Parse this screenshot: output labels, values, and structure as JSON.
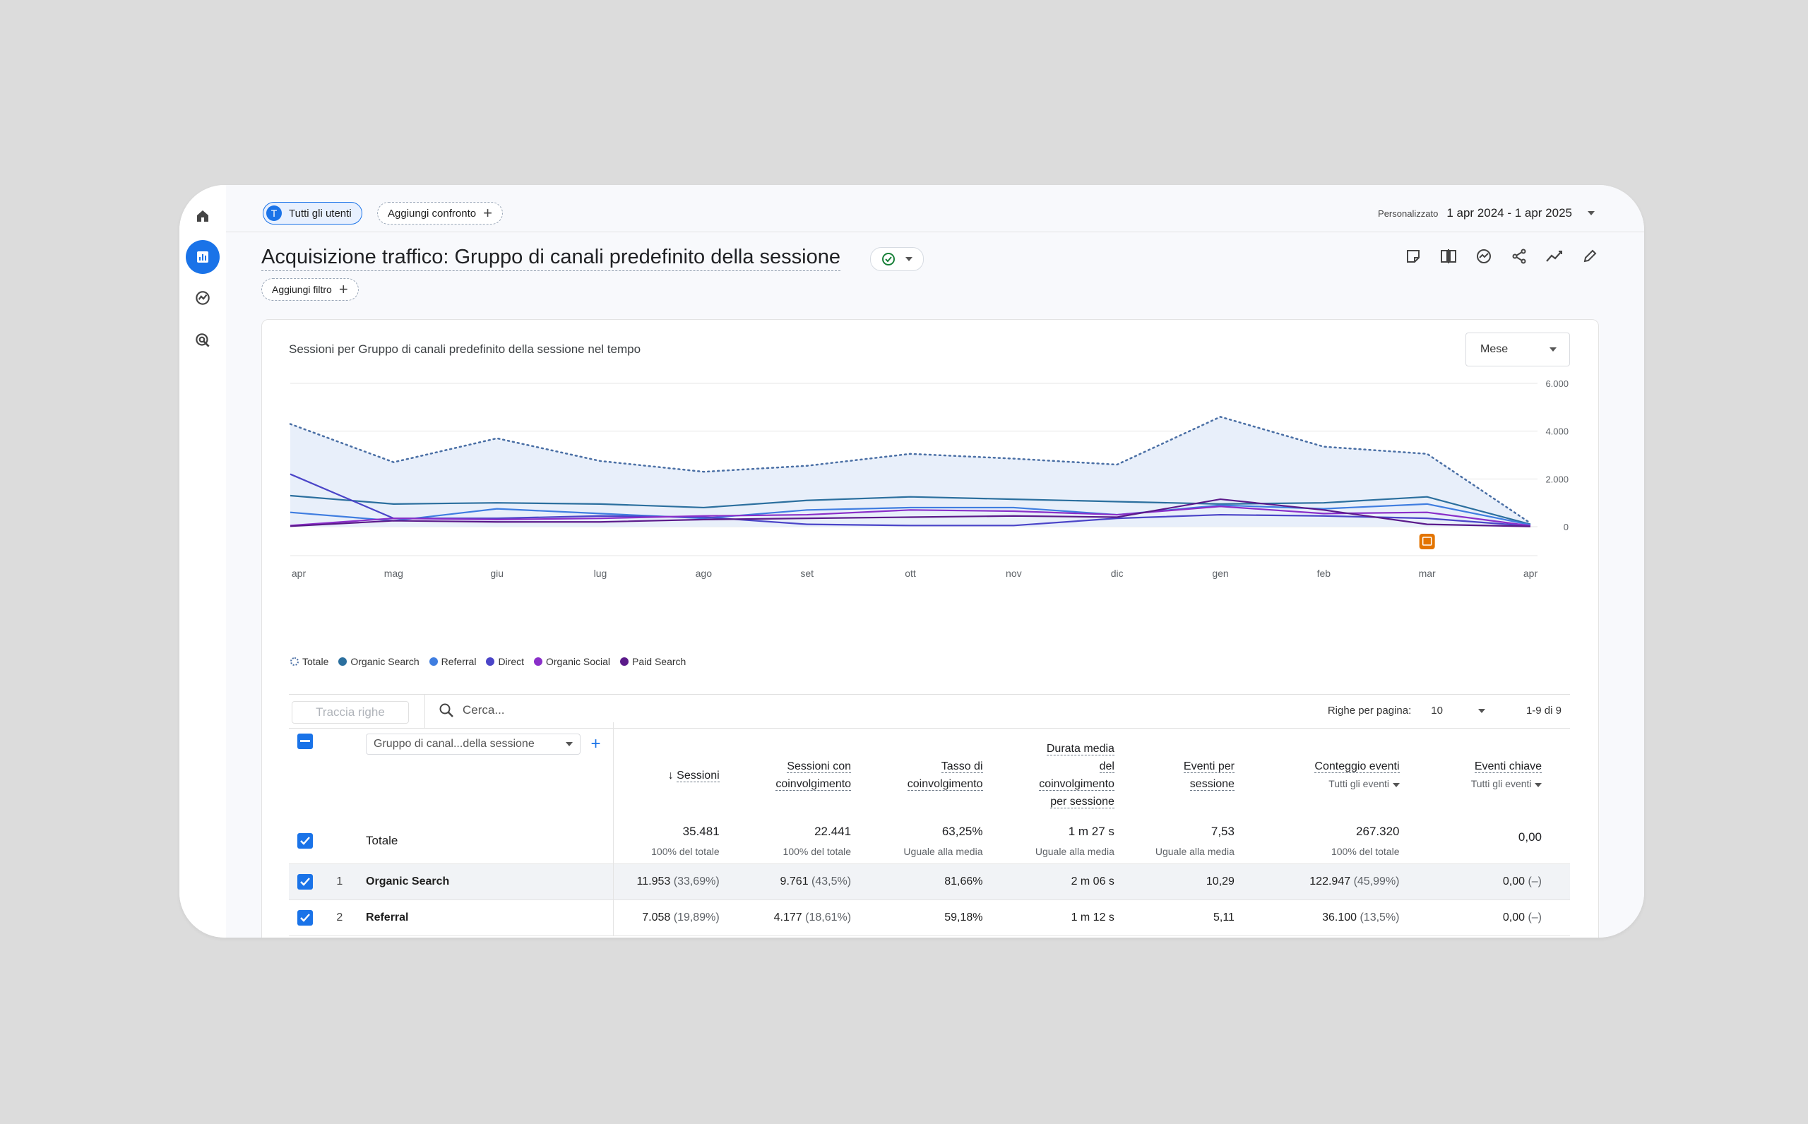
{
  "filters": {
    "audience_label": "Tutti gli utenti",
    "audience_initial": "T",
    "compare_label": "Aggiungi confronto",
    "add_filter_label": "Aggiungi filtro"
  },
  "date": {
    "preset": "Personalizzato",
    "range": "1 apr 2024 - 1 apr 2025"
  },
  "page_title": "Acquisizione traffico: Gruppo di canali predefinito della sessione",
  "toolbar_icons": [
    "notes-icon",
    "compare-icon",
    "insights-icon",
    "share-icon",
    "trend-icon",
    "edit-icon"
  ],
  "rail_icons": [
    "home-icon",
    "reports-icon",
    "explore-icon",
    "advertising-icon"
  ],
  "chart": {
    "title": "Sessioni per Gruppo di canali predefinito della sessione nel tempo",
    "period": "Mese"
  },
  "chart_data": {
    "type": "line",
    "x": [
      "apr",
      "mag",
      "giu",
      "lug",
      "ago",
      "set",
      "ott",
      "nov",
      "dic",
      "gen",
      "feb",
      "mar",
      "apr"
    ],
    "y_ticks": [
      "6.000",
      "4.000",
      "2.000",
      "0"
    ],
    "ylim": [
      0,
      6000
    ],
    "grid": true,
    "legend_position": "bottom-left",
    "series": [
      {
        "name": "Totale",
        "color": "#4a6fa5",
        "style": "dotted-area",
        "values": [
          4300,
          2700,
          3700,
          2750,
          2300,
          2550,
          3050,
          2850,
          2600,
          4600,
          3350,
          3050,
          150
        ]
      },
      {
        "name": "Organic Search",
        "color": "#2b6f9e",
        "values": [
          1300,
          950,
          1000,
          950,
          800,
          1100,
          1250,
          1150,
          1050,
          950,
          1000,
          1250,
          100
        ]
      },
      {
        "name": "Referral",
        "color": "#3f7de0",
        "values": [
          600,
          250,
          750,
          550,
          350,
          700,
          800,
          800,
          500,
          900,
          750,
          950,
          80
        ]
      },
      {
        "name": "Direct",
        "color": "#4b45c8",
        "values": [
          2200,
          350,
          350,
          450,
          400,
          100,
          50,
          50,
          350,
          500,
          450,
          350,
          30
        ]
      },
      {
        "name": "Organic Social",
        "color": "#8a2fc9",
        "values": [
          50,
          350,
          300,
          350,
          450,
          500,
          700,
          650,
          500,
          850,
          550,
          600,
          40
        ]
      },
      {
        "name": "Paid Search",
        "color": "#5b1a8a",
        "values": [
          20,
          250,
          200,
          200,
          300,
          350,
          400,
          450,
          400,
          1150,
          700,
          100,
          10
        ]
      }
    ],
    "annotation_icon": "calendar-note-icon"
  },
  "table": {
    "track_rows": "Traccia righe",
    "search_placeholder": "Cerca...",
    "rows_per_page_label": "Righe per pagina:",
    "rows_per_page": "10",
    "pagination": "1-9 di 9",
    "dimension": "Gruppo di canal...della sessione",
    "columns": [
      {
        "lines": [
          "Sessioni"
        ],
        "sorted": true
      },
      {
        "lines": [
          "Sessioni con",
          "coinvolgimento"
        ]
      },
      {
        "lines": [
          "Tasso di",
          "coinvolgimento"
        ]
      },
      {
        "lines": [
          "Durata media",
          "del",
          "coinvolgimento",
          "per sessione"
        ]
      },
      {
        "lines": [
          "Eventi per",
          "sessione"
        ]
      },
      {
        "lines": [
          "Conteggio eventi"
        ],
        "sub": "Tutti gli eventi"
      },
      {
        "lines": [
          "Eventi chiave"
        ],
        "sub": "Tutti gli eventi"
      }
    ],
    "total_label": "Totale",
    "totals": [
      {
        "value": "35.481",
        "note": "100% del totale"
      },
      {
        "value": "22.441",
        "note": "100% del totale"
      },
      {
        "value": "63,25%",
        "note": "Uguale alla media"
      },
      {
        "value": "1 m 27 s",
        "note": "Uguale alla media"
      },
      {
        "value": "7,53",
        "note": "Uguale alla media"
      },
      {
        "value": "267.320",
        "note": "100% del totale"
      },
      {
        "value": "0,00",
        "note": ""
      }
    ],
    "rows": [
      {
        "rank": "1",
        "name": "Organic Search",
        "cells": [
          {
            "v": "11.953",
            "p": "(33,69%)"
          },
          {
            "v": "9.761",
            "p": "(43,5%)"
          },
          {
            "v": "81,66%",
            "p": ""
          },
          {
            "v": "2 m 06 s",
            "p": ""
          },
          {
            "v": "10,29",
            "p": ""
          },
          {
            "v": "122.947",
            "p": "(45,99%)"
          },
          {
            "v": "0,00",
            "p": "(–)"
          }
        ]
      },
      {
        "rank": "2",
        "name": "Referral",
        "cells": [
          {
            "v": "7.058",
            "p": "(19,89%)"
          },
          {
            "v": "4.177",
            "p": "(18,61%)"
          },
          {
            "v": "59,18%",
            "p": ""
          },
          {
            "v": "1 m 12 s",
            "p": ""
          },
          {
            "v": "5,11",
            "p": ""
          },
          {
            "v": "36.100",
            "p": "(13,5%)"
          },
          {
            "v": "0,00",
            "p": "(–)"
          }
        ]
      }
    ]
  }
}
